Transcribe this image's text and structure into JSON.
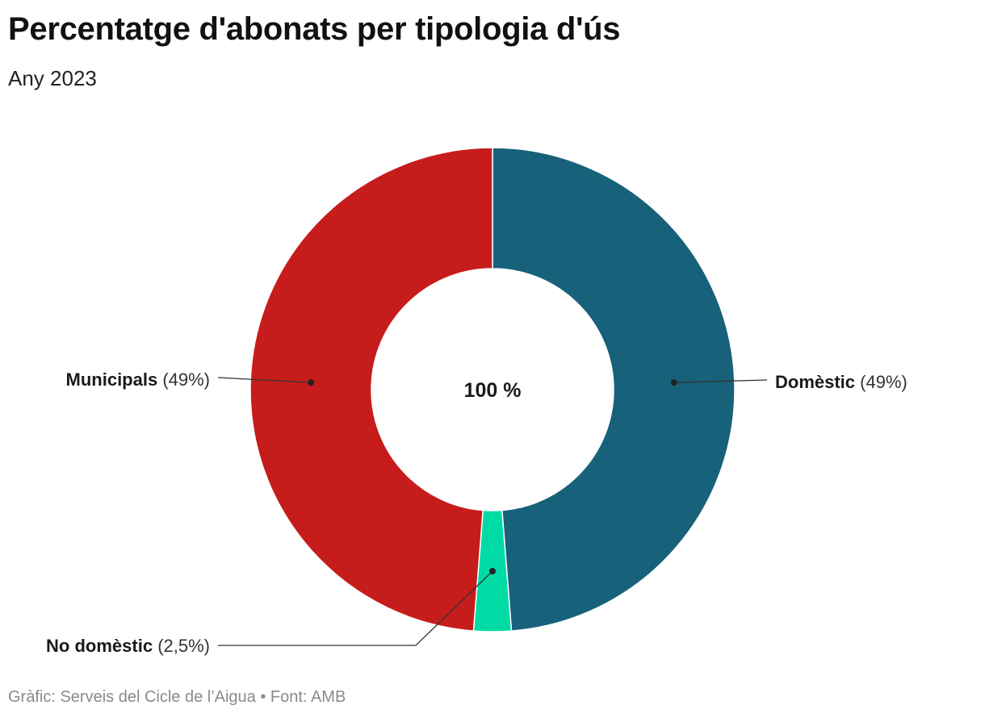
{
  "header": {
    "title": "Percentatge d'abonats per tipologia d'ús",
    "subtitle": "Any 2023"
  },
  "chart_data": {
    "type": "pie",
    "variant": "donut",
    "title": "Percentatge d'abonats per tipologia d'ús",
    "subtitle": "Any 2023",
    "center_label": "100 %",
    "slices": [
      {
        "name": "Domèstic",
        "value": 48.75,
        "label": "(49%)",
        "color": "#17617b"
      },
      {
        "name": "No domèstic",
        "value": 2.5,
        "label": "(2,5%)",
        "color": "#00dba5"
      },
      {
        "name": "Municipals",
        "value": 48.75,
        "label": "(49%)",
        "color": "#c71c1c"
      }
    ]
  },
  "footer": {
    "text": "Gràfic: Serveis del Cicle de l’Aigua • Font: AMB"
  }
}
